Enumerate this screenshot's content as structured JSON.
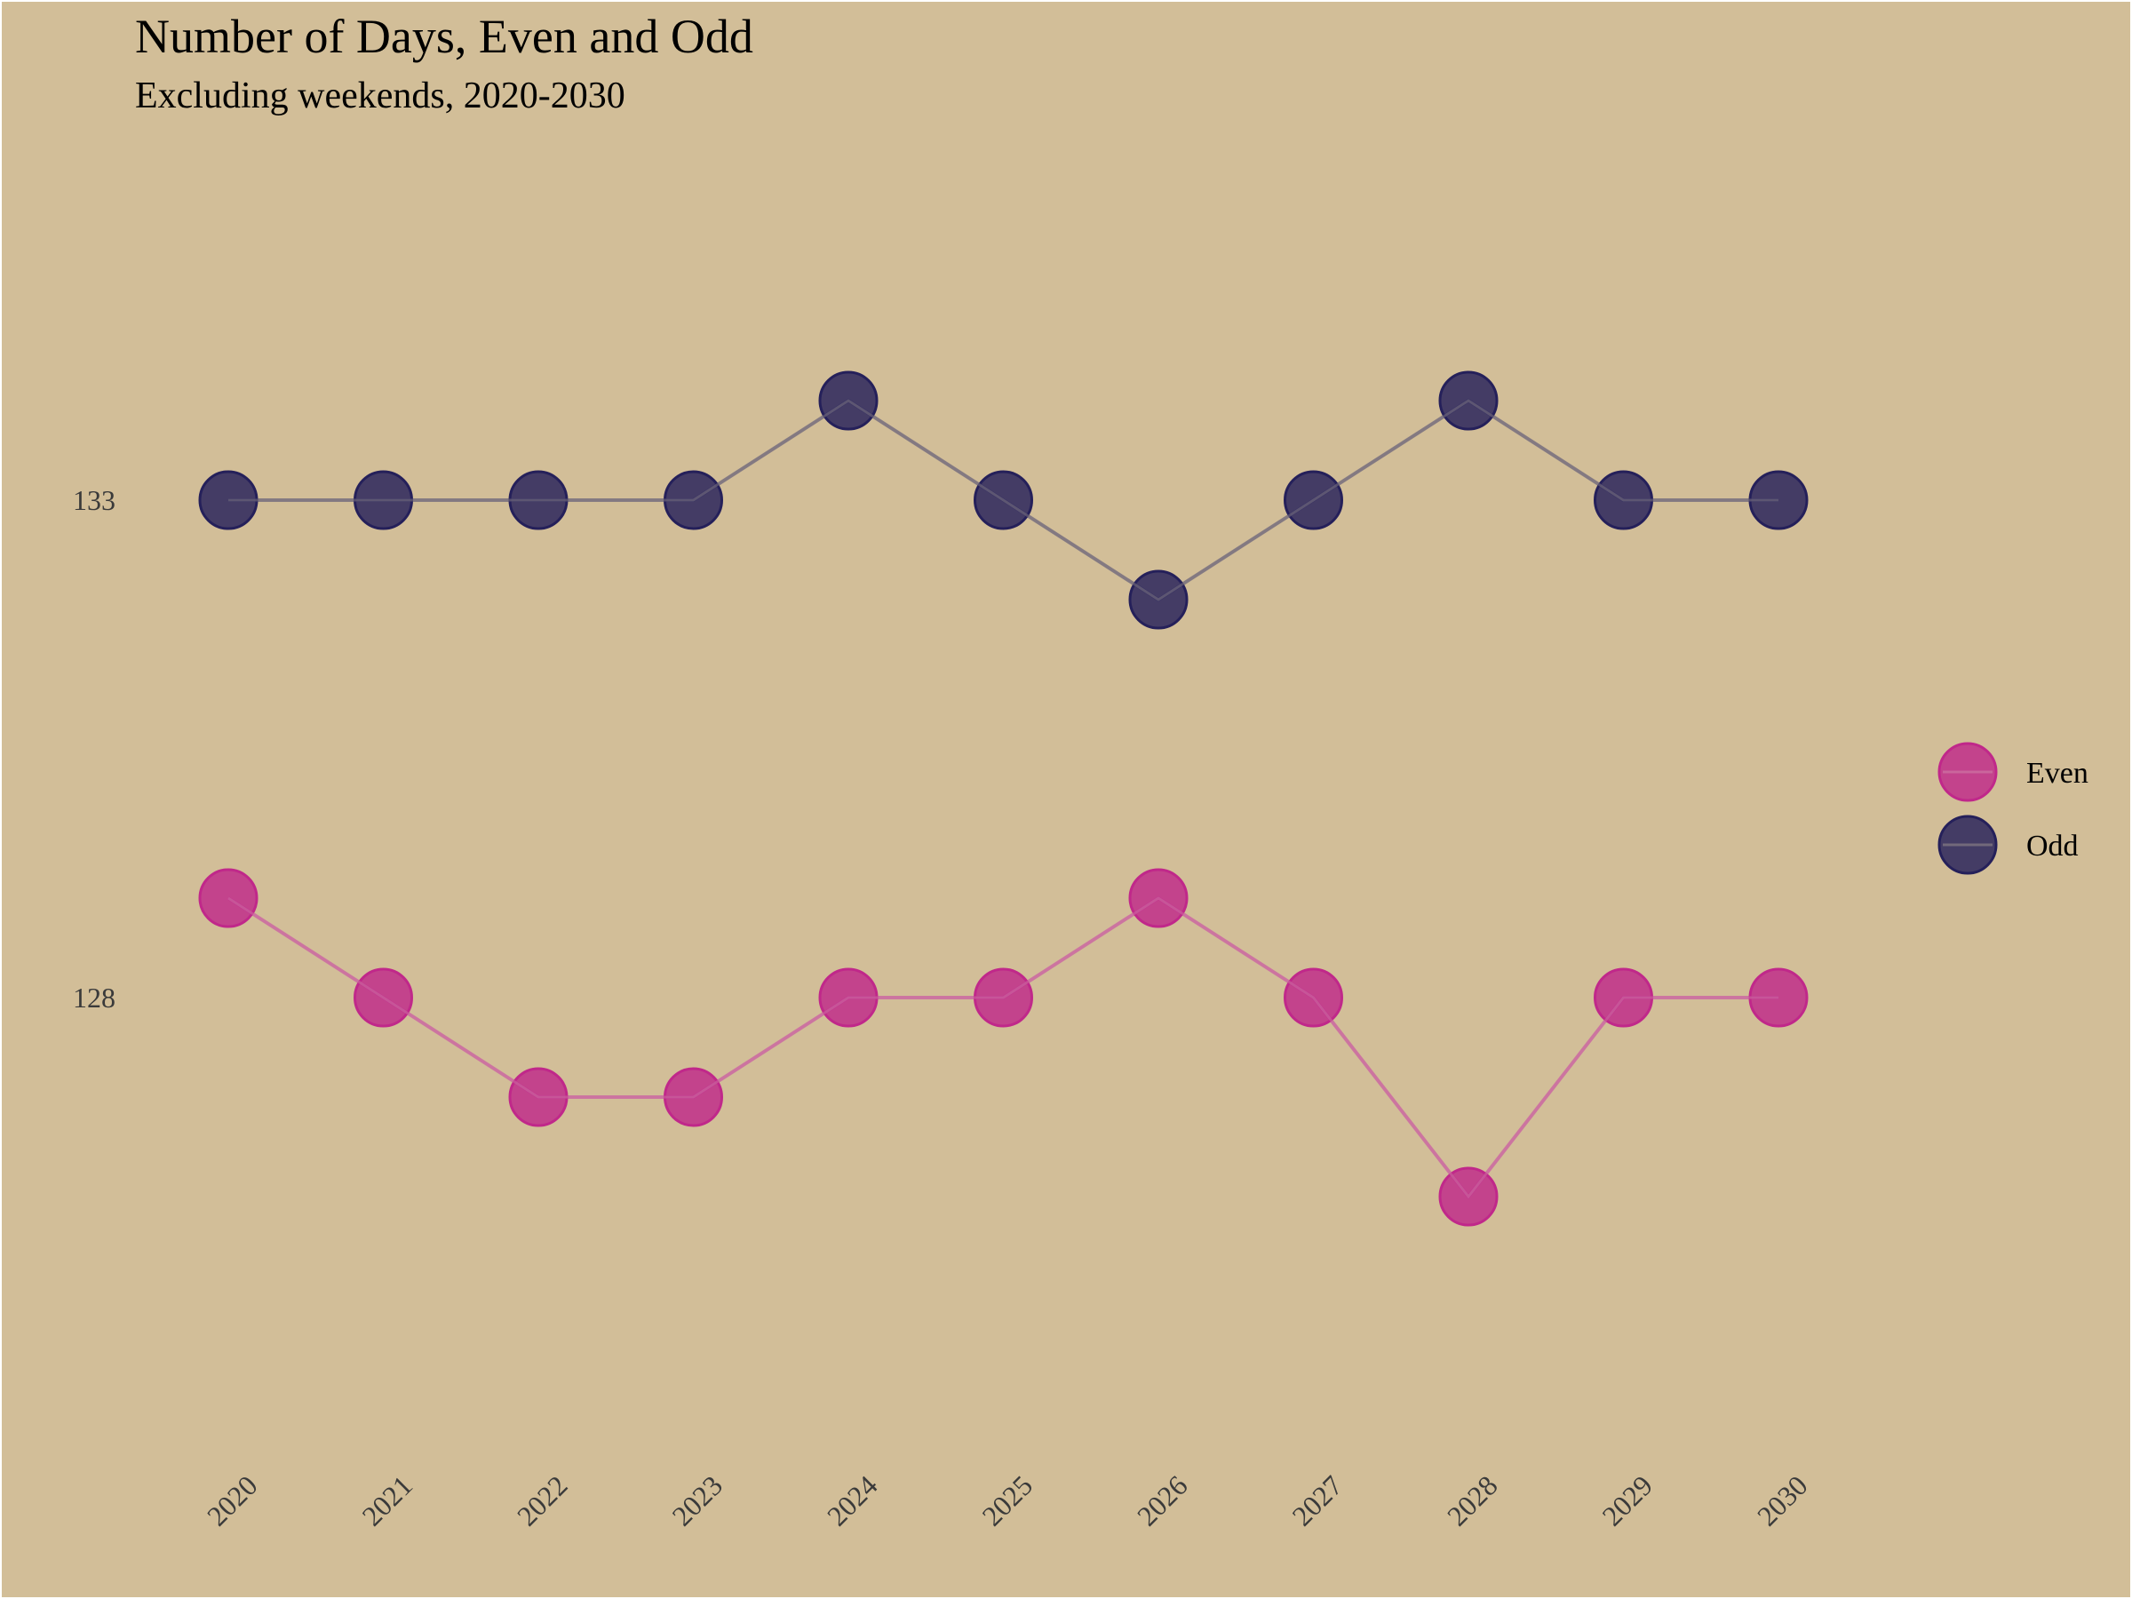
{
  "chart_data": {
    "type": "line",
    "title": "Number of Days, Even and Odd",
    "subtitle": "Excluding weekends, 2020-2030",
    "xlabel": "",
    "ylabel": "",
    "x": [
      "2020",
      "2021",
      "2022",
      "2023",
      "2024",
      "2025",
      "2026",
      "2027",
      "2028",
      "2029",
      "2030"
    ],
    "y_ticks": [
      128,
      133
    ],
    "ylim": [
      125,
      137
    ],
    "grid": false,
    "legend_position": "right",
    "series": [
      {
        "name": "Even",
        "color": "#c0288a",
        "line_color": "#cc6fa0",
        "values": [
          129,
          128,
          127,
          127,
          128,
          128,
          129,
          128,
          126,
          128,
          128
        ]
      },
      {
        "name": "Odd",
        "color": "#25205a",
        "line_color": "#7e7480",
        "values": [
          133,
          133,
          133,
          133,
          134,
          133,
          132,
          133,
          134,
          133,
          133
        ]
      }
    ]
  }
}
